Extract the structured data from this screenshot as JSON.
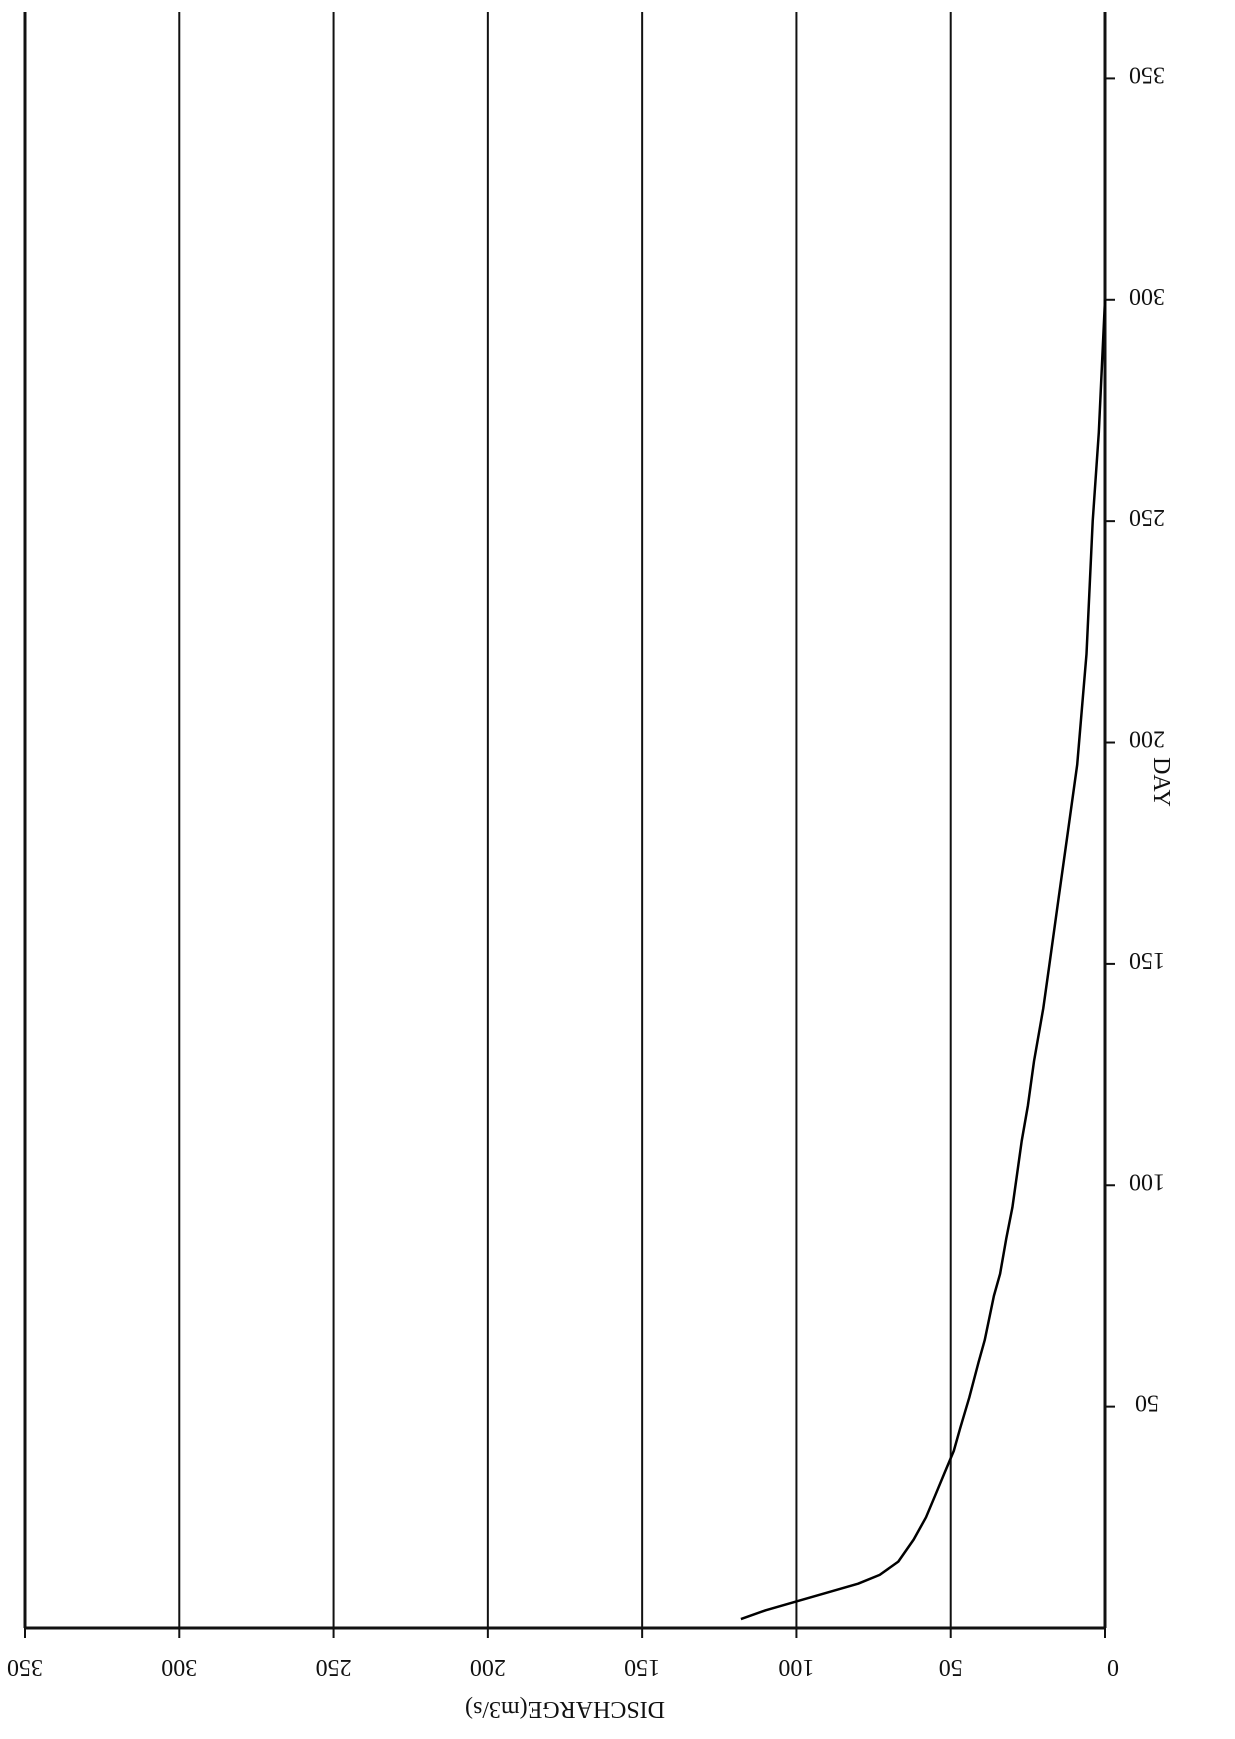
{
  "chart_data": {
    "type": "line",
    "orientation": "rotated 180 degrees (printed upside down)",
    "xlabel": "DISCHARGE(m3/s)",
    "ylabel": "DAY",
    "x_ticks": [
      0,
      50,
      100,
      150,
      200,
      250,
      300,
      350
    ],
    "y_ticks": [
      50,
      100,
      150,
      200,
      250,
      300,
      350
    ],
    "xlim": [
      0,
      350
    ],
    "ylim": [
      0,
      365
    ],
    "grid": "vertical lines at discharge ticks",
    "legend": "none",
    "series": [
      {
        "x": [
          0,
          1,
          2,
          4,
          6,
          9,
          12,
          15,
          18,
          20,
          23,
          25,
          27,
          29,
          30,
          32,
          34,
          36,
          39,
          41,
          44,
          47,
          49,
          52,
          55,
          58,
          62,
          67,
          73,
          80,
          90,
          100,
          110,
          118
        ],
        "y": [
          300,
          285,
          270,
          250,
          220,
          195,
          180,
          165,
          150,
          140,
          128,
          118,
          110,
          100,
          95,
          88,
          80,
          75,
          65,
          60,
          52,
          45,
          40,
          35,
          30,
          25,
          20,
          15,
          12,
          10,
          8,
          6,
          4,
          2
        ]
      }
    ]
  },
  "colors": {
    "axis": "#111111",
    "grid": "#111111",
    "line": "#000000",
    "background": "#ffffff"
  }
}
